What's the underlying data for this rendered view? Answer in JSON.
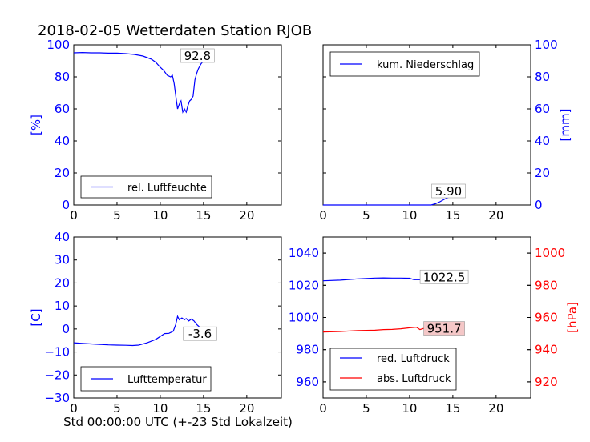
{
  "figure": {
    "title": "2018-02-05 Wetterdaten Station RJOB",
    "xlabel": "Std 00:00:00 UTC (+-23 Std Lokalzeit)"
  },
  "colors": {
    "blue": "#0000ff",
    "red": "#ff0000",
    "annot_red_bg": "#f4c7c7"
  },
  "chart_data": [
    {
      "type": "line",
      "id": "humidity",
      "xlim": [
        0,
        24
      ],
      "ylim": [
        0,
        100
      ],
      "xticks": [
        0,
        5,
        10,
        15,
        20
      ],
      "yticks": [
        0,
        20,
        40,
        60,
        80,
        100
      ],
      "yaxis_side": "left",
      "ylabel": "[%]",
      "ylabel_color": "#0000ff",
      "tick_color": "#0000ff",
      "legend": {
        "position": "lower-left"
      },
      "annotation": {
        "text": "92.8",
        "x": 14.3,
        "y": 93
      },
      "series": [
        {
          "name": "rel. Luftfeuchte",
          "color": "#0000ff",
          "x": [
            0,
            1,
            2,
            3,
            4,
            5,
            6,
            7,
            7.5,
            8,
            8.5,
            9,
            9.5,
            10,
            10.4,
            10.8,
            11.2,
            11.4,
            11.6,
            11.8,
            12.0,
            12.2,
            12.4,
            12.6,
            12.8,
            13.0,
            13.2,
            13.4,
            13.6,
            13.8,
            14.0,
            14.2,
            14.4,
            14.7,
            15.0,
            15.5,
            16.0
          ],
          "y": [
            95,
            95.2,
            95,
            95,
            94.8,
            94.8,
            94.5,
            94,
            93.5,
            93,
            92,
            91,
            89,
            86,
            84,
            81,
            80,
            81,
            76,
            68,
            60,
            63,
            65,
            58,
            60,
            58,
            62,
            65,
            66,
            68,
            78,
            82,
            85,
            88,
            90,
            92,
            93
          ]
        }
      ]
    },
    {
      "type": "line",
      "id": "precipitation",
      "xlim": [
        0,
        24
      ],
      "ylim": [
        0,
        100
      ],
      "xticks": [
        0,
        5,
        10,
        15,
        20
      ],
      "yticks": [
        0,
        20,
        40,
        60,
        80,
        100
      ],
      "yaxis_side": "right",
      "ylabel": "[mm]",
      "ylabel_color": "#0000ff",
      "tick_color": "#0000ff",
      "legend": {
        "position": "upper-left"
      },
      "annotation": {
        "text": "5.90",
        "x": 14.5,
        "y": 8.5
      },
      "series": [
        {
          "name": "kum. Niederschlag",
          "color": "#0000ff",
          "x": [
            0,
            5,
            10,
            12.5,
            13.0,
            13.5,
            14.0,
            14.5,
            15.0,
            16.0
          ],
          "y": [
            0,
            0,
            0,
            0,
            0.8,
            2.0,
            3.5,
            4.8,
            5.6,
            5.9
          ]
        }
      ]
    },
    {
      "type": "line",
      "id": "temperature",
      "xlim": [
        0,
        24
      ],
      "ylim": [
        -30,
        40
      ],
      "xticks": [
        0,
        5,
        10,
        15,
        20
      ],
      "yticks": [
        -30,
        -20,
        -10,
        0,
        10,
        20,
        30,
        40
      ],
      "yaxis_side": "left",
      "ylabel": "[C]",
      "ylabel_color": "#0000ff",
      "tick_color": "#0000ff",
      "legend": {
        "position": "lower-left"
      },
      "annotation": {
        "text": "-3.6",
        "x": 14.6,
        "y": -2.2
      },
      "series": [
        {
          "name": "Lufttemperatur",
          "color": "#0000ff",
          "x": [
            0,
            1,
            2,
            3,
            4,
            5,
            6,
            6.8,
            7.5,
            8.5,
            9.5,
            10.5,
            11.0,
            11.5,
            11.8,
            12.0,
            12.2,
            12.5,
            12.8,
            13.0,
            13.3,
            13.6,
            13.9,
            14.2,
            14.5,
            14.8,
            15.2,
            15.6,
            16.0
          ],
          "y": [
            -6.0,
            -6.3,
            -6.5,
            -6.7,
            -6.9,
            -7.0,
            -7.1,
            -7.2,
            -7.0,
            -6.0,
            -4.5,
            -2.0,
            -1.9,
            -1.0,
            2.0,
            5.5,
            4.0,
            4.8,
            4.0,
            4.5,
            3.5,
            4.3,
            3.5,
            2.0,
            1.0,
            -0.5,
            -1.5,
            -2.5,
            -3.6
          ]
        }
      ]
    },
    {
      "type": "line",
      "id": "pressure",
      "xlim": [
        0,
        24
      ],
      "ylim": [
        950,
        1050
      ],
      "ylim_right": [
        910,
        1010
      ],
      "xticks": [
        0,
        5,
        10,
        15,
        20
      ],
      "yticks": [
        960,
        980,
        1000,
        1020,
        1040
      ],
      "yticks_right": [
        920,
        940,
        960,
        980,
        1000
      ],
      "yaxis_side": "both",
      "ylabel_right": "[hPa]",
      "ylabel_color": "#ff0000",
      "tick_color_left": "#0000ff",
      "tick_color_right": "#ff0000",
      "legend": {
        "position": "lower-left"
      },
      "annotations": [
        {
          "text": "1022.5",
          "x": 14.0,
          "y": 1025,
          "axis": "left"
        },
        {
          "text": "951.7",
          "x": 14.0,
          "y": 953,
          "axis": "right"
        }
      ],
      "series": [
        {
          "name": "red. Luftdruck",
          "color": "#0000ff",
          "axis": "left",
          "x": [
            0,
            2,
            4,
            5,
            6,
            7,
            8,
            9,
            10,
            10.5,
            11,
            12,
            13,
            14,
            15,
            16
          ],
          "y": [
            1022.8,
            1023.2,
            1024.0,
            1024.2,
            1024.5,
            1024.6,
            1024.5,
            1024.5,
            1024.4,
            1023.5,
            1023.6,
            1023.5,
            1023.6,
            1023.0,
            1022.8,
            1022.5
          ]
        },
        {
          "name": "abs. Luftdruck",
          "color": "#ff0000",
          "axis": "right",
          "x": [
            0,
            2,
            4,
            5,
            6,
            7,
            8,
            9,
            10,
            10.8,
            11.2,
            12,
            13,
            14,
            15,
            16
          ],
          "y": [
            951.0,
            951.3,
            951.9,
            952.0,
            952.1,
            952.5,
            952.6,
            953.0,
            953.6,
            954.0,
            952.5,
            953.8,
            953.0,
            952.4,
            952.0,
            951.7
          ]
        }
      ]
    }
  ]
}
